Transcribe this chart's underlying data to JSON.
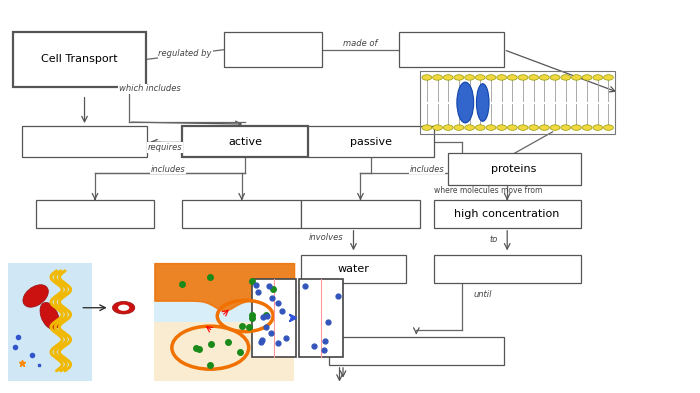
{
  "bg": "#ffffff",
  "boxes": {
    "CT": [
      0.018,
      0.78,
      0.19,
      0.14
    ],
    "REG": [
      0.32,
      0.83,
      0.14,
      0.09
    ],
    "MO": [
      0.57,
      0.83,
      0.15,
      0.09
    ],
    "BL": [
      0.03,
      0.6,
      0.18,
      0.08
    ],
    "AC": [
      0.26,
      0.6,
      0.18,
      0.08
    ],
    "PA": [
      0.44,
      0.6,
      0.18,
      0.08
    ],
    "PR": [
      0.64,
      0.53,
      0.19,
      0.08
    ],
    "AS1": [
      0.05,
      0.42,
      0.17,
      0.07
    ],
    "AS2": [
      0.26,
      0.42,
      0.17,
      0.07
    ],
    "PS": [
      0.43,
      0.42,
      0.17,
      0.07
    ],
    "HC": [
      0.62,
      0.42,
      0.21,
      0.07
    ],
    "WA": [
      0.43,
      0.28,
      0.15,
      0.07
    ],
    "TO": [
      0.62,
      0.28,
      0.21,
      0.07
    ],
    "BB": [
      0.47,
      0.07,
      0.25,
      0.07
    ]
  },
  "labels": {
    "CT": "Cell Transport",
    "REG": "",
    "MO": "",
    "BL": "",
    "AC": "active",
    "PA": "passive",
    "PR": "proteins",
    "AS1": "",
    "AS2": "",
    "PS": "",
    "HC": "high concentration",
    "WA": "water",
    "TO": "",
    "BB": ""
  }
}
